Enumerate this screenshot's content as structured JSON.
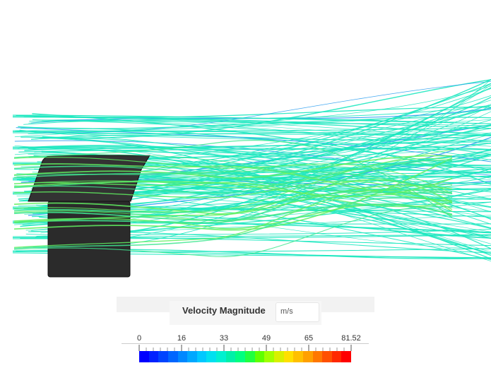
{
  "legend": {
    "title": "Velocity Magnitude",
    "unit": "m/s",
    "ticks": [
      "0",
      "16",
      "33",
      "49",
      "65",
      "81.52"
    ],
    "colors": [
      "#0000ff",
      "#0022ff",
      "#0044ff",
      "#0066ff",
      "#0088ff",
      "#00a8ff",
      "#00c8ff",
      "#00e0f0",
      "#00f0d0",
      "#00f0a8",
      "#00ff80",
      "#20ff40",
      "#60ff00",
      "#a0ff00",
      "#d8f000",
      "#ffe000",
      "#ffc000",
      "#ffa000",
      "#ff7800",
      "#ff5000",
      "#ff2800",
      "#ff0000"
    ]
  },
  "scene": {
    "streamline_color": "#1ee8c0",
    "slow_color": "#60f060",
    "body_color": "#2b2b2b"
  }
}
